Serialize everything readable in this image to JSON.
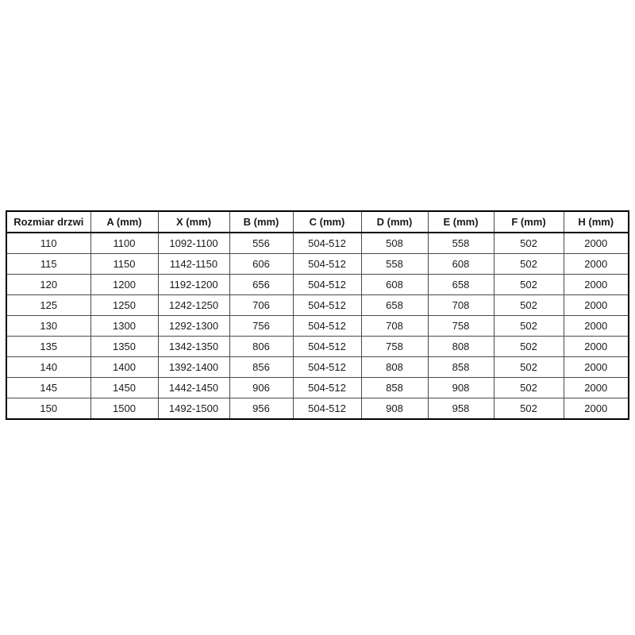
{
  "page": {
    "background_color": "#ffffff",
    "text_color": "#1a1a1a",
    "border_color": "#000000"
  },
  "chart_data": {
    "type": "table",
    "title": "",
    "columns": [
      "Rozmiar drzwi",
      "A (mm)",
      "X (mm)",
      "B (mm)",
      "C (mm)",
      "D (mm)",
      "E (mm)",
      "F (mm)",
      "H (mm)"
    ],
    "rows": [
      [
        "110",
        "1100",
        "1092-1100",
        "556",
        "504-512",
        "508",
        "558",
        "502",
        "2000"
      ],
      [
        "115",
        "1150",
        "1142-1150",
        "606",
        "504-512",
        "558",
        "608",
        "502",
        "2000"
      ],
      [
        "120",
        "1200",
        "1192-1200",
        "656",
        "504-512",
        "608",
        "658",
        "502",
        "2000"
      ],
      [
        "125",
        "1250",
        "1242-1250",
        "706",
        "504-512",
        "658",
        "708",
        "502",
        "2000"
      ],
      [
        "130",
        "1300",
        "1292-1300",
        "756",
        "504-512",
        "708",
        "758",
        "502",
        "2000"
      ],
      [
        "135",
        "1350",
        "1342-1350",
        "806",
        "504-512",
        "758",
        "808",
        "502",
        "2000"
      ],
      [
        "140",
        "1400",
        "1392-1400",
        "856",
        "504-512",
        "808",
        "858",
        "502",
        "2000"
      ],
      [
        "145",
        "1450",
        "1442-1450",
        "906",
        "504-512",
        "858",
        "908",
        "502",
        "2000"
      ],
      [
        "150",
        "1500",
        "1492-1500",
        "956",
        "504-512",
        "908",
        "958",
        "502",
        "2000"
      ]
    ],
    "layout": {
      "grid": true,
      "header_bold": true
    }
  }
}
